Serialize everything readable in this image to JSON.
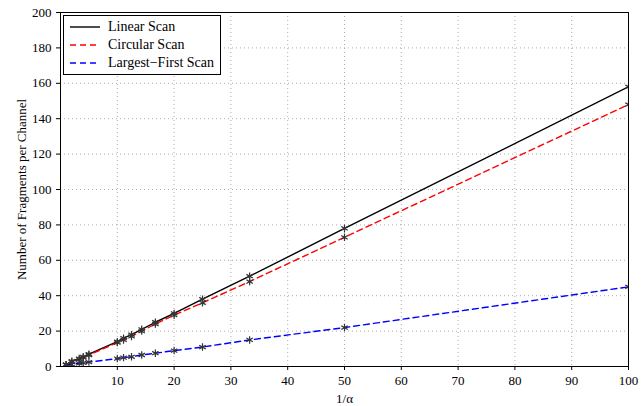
{
  "chart_data": {
    "type": "line",
    "x_label": "1/α",
    "y_label": "Number of Fragments per Channel",
    "x": [
      1,
      2,
      3.3,
      4,
      5,
      10,
      11.1,
      12.5,
      14.3,
      16.7,
      20,
      25,
      33.3,
      50,
      100
    ],
    "series": [
      {
        "name": "Linear Scan",
        "color": "#000000",
        "line_style": "solid",
        "marker": "asterisk",
        "values": [
          1,
          3,
          4.5,
          5.5,
          7,
          14,
          16,
          18,
          21,
          25,
          30,
          38,
          51,
          78,
          158
        ]
      },
      {
        "name": "Circular Scan",
        "color": "#ff0000",
        "line_style": "dashed",
        "marker": "asterisk",
        "values": [
          1,
          2.5,
          4,
          5,
          6.5,
          13.5,
          15,
          17,
          20,
          24,
          29,
          36,
          48,
          73,
          148
        ]
      },
      {
        "name": "Largest−First Scan",
        "color": "#0000ff",
        "line_style": "dashed",
        "marker": "asterisk",
        "values": [
          1,
          1.2,
          1.8,
          2,
          2.5,
          4.5,
          5,
          5.5,
          6.5,
          7.5,
          9,
          11,
          15,
          22,
          45
        ]
      }
    ],
    "xlim": [
      0,
      100
    ],
    "xticks": [
      10,
      20,
      30,
      40,
      50,
      60,
      70,
      80,
      90,
      100
    ],
    "ylim": [
      0,
      200
    ],
    "yticks": [
      0,
      20,
      40,
      60,
      80,
      100,
      120,
      140,
      160,
      180,
      200
    ],
    "grid": true,
    "legend": "top-left"
  }
}
